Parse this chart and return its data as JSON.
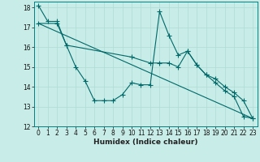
{
  "xlabel": "Humidex (Indice chaleur)",
  "xlim": [
    -0.5,
    23.5
  ],
  "ylim": [
    12,
    18.3
  ],
  "xticks": [
    0,
    1,
    2,
    3,
    4,
    5,
    6,
    7,
    8,
    9,
    10,
    11,
    12,
    13,
    14,
    15,
    16,
    17,
    18,
    19,
    20,
    21,
    22,
    23
  ],
  "yticks": [
    12,
    13,
    14,
    15,
    16,
    17,
    18
  ],
  "bg_color": "#c8ede8",
  "grid_color": "#b0dbd6",
  "line_color": "#006868",
  "line1_x": [
    0,
    1,
    2,
    3,
    4,
    5,
    6,
    7,
    8,
    9,
    10,
    11,
    12,
    13,
    14,
    15,
    16,
    17,
    18,
    19,
    20,
    21,
    22,
    23
  ],
  "line1_y": [
    18.1,
    17.3,
    17.3,
    16.1,
    15.0,
    14.3,
    13.3,
    13.3,
    13.3,
    13.6,
    14.2,
    14.1,
    14.1,
    17.8,
    16.6,
    15.6,
    15.8,
    15.1,
    14.6,
    14.2,
    13.8,
    13.5,
    12.5,
    12.4
  ],
  "line2_x": [
    0,
    2,
    3,
    10,
    12,
    13,
    14,
    15,
    16,
    17,
    18,
    19,
    20,
    21,
    22,
    23
  ],
  "line2_y": [
    17.2,
    17.2,
    16.1,
    15.5,
    15.2,
    15.2,
    15.2,
    15.0,
    15.8,
    15.1,
    14.6,
    14.4,
    14.0,
    13.7,
    13.3,
    12.4
  ],
  "line3_x": [
    0,
    23
  ],
  "line3_y": [
    17.2,
    12.4
  ]
}
